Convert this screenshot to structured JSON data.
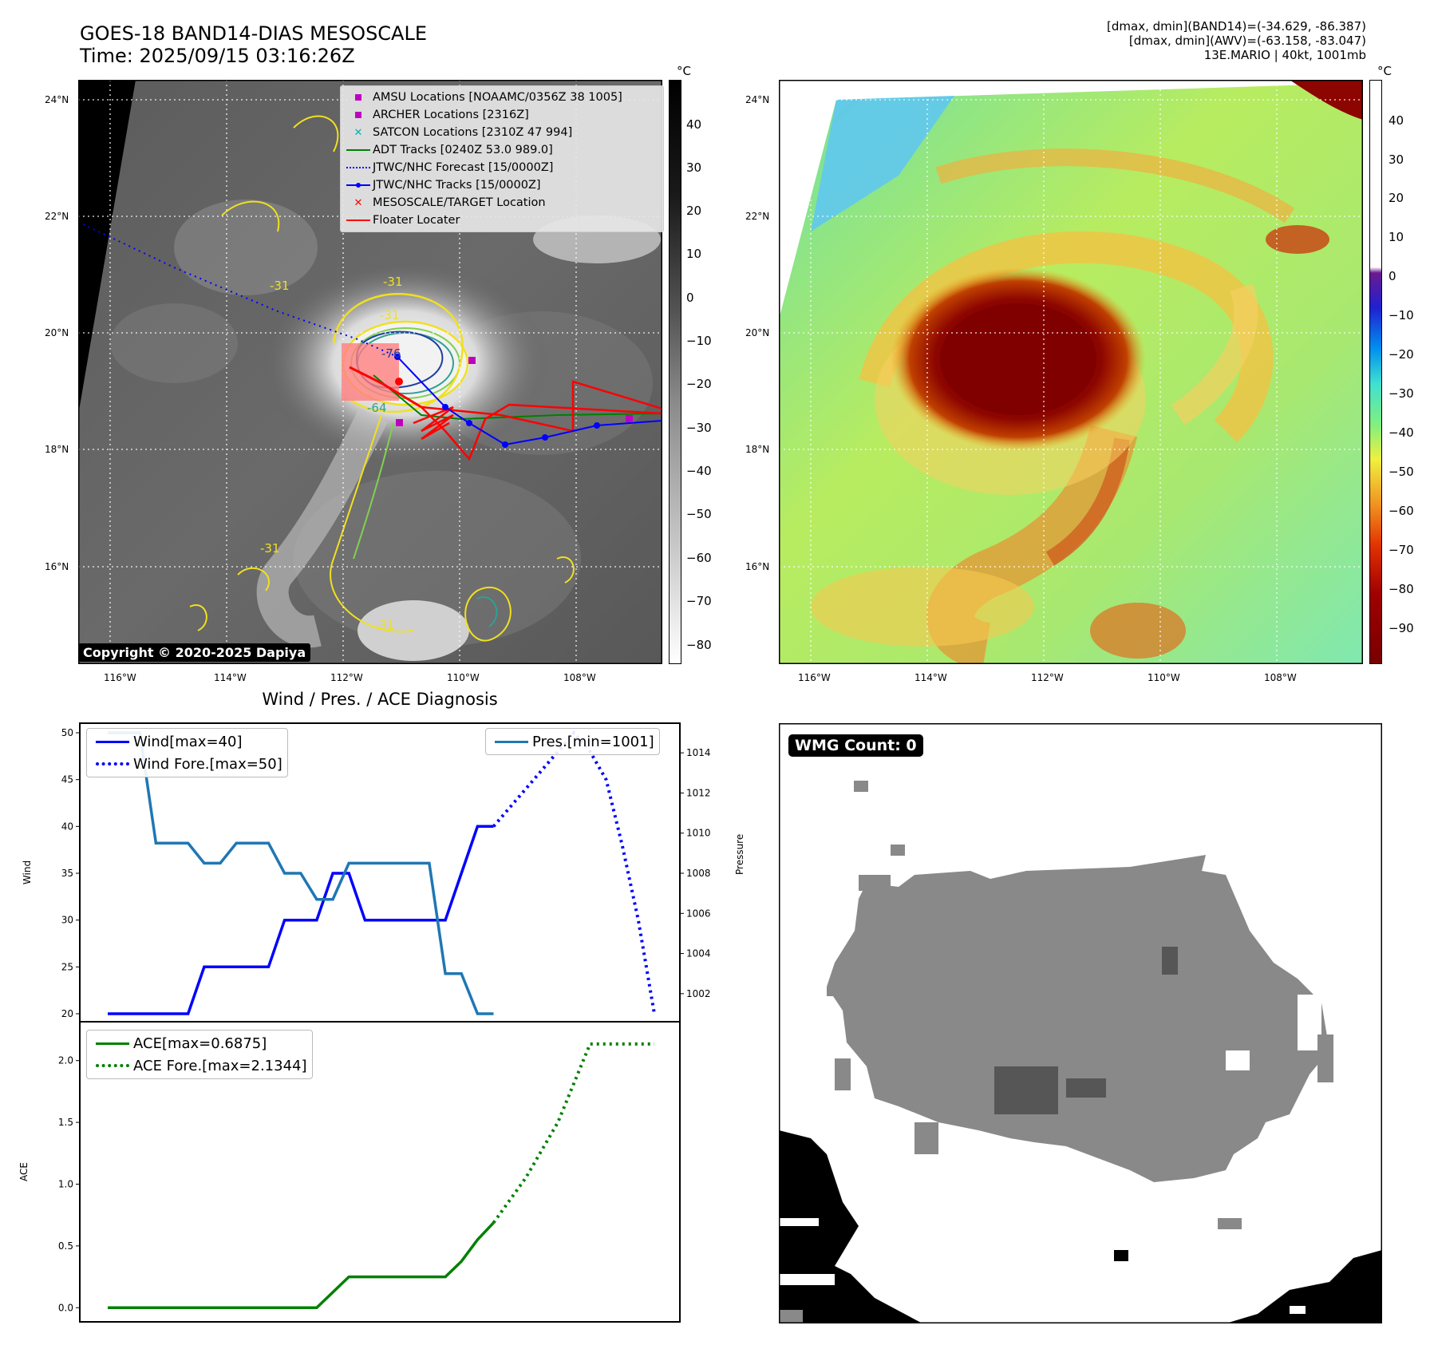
{
  "header": {
    "title_line1": "GOES-18 BAND14-DIAS MESOSCALE",
    "title_line2": "Time: 2025/09/15 03:16:26Z",
    "info_line1": "[dmax, dmin](BAND14)=(-34.629, -86.387)",
    "info_line2": "[dmax, dmin](AWV)=(-63.158, -83.047)",
    "info_line3": "13E.MARIO | 40kt, 1001mb"
  },
  "map_axes": {
    "lat_labels": [
      "24°N",
      "22°N",
      "20°N",
      "18°N",
      "16°N"
    ],
    "lon_labels": [
      "116°W",
      "114°W",
      "112°W",
      "110°W",
      "108°W"
    ]
  },
  "ir_panel": {
    "colorbar_unit": "°C",
    "colorbar_ticks": [
      "40",
      "30",
      "20",
      "10",
      "0",
      "−10",
      "−20",
      "−30",
      "−40",
      "−50",
      "−60",
      "−70",
      "−80"
    ],
    "legend": [
      {
        "label": "AMSU Locations [NOAAMC/0356Z 38 1005]",
        "marker": "square",
        "color": "#c000c0"
      },
      {
        "label": "ARCHER Locations [2316Z]",
        "marker": "square",
        "color": "#c000c0"
      },
      {
        "label": "SATCON Locations [2310Z 47 994]",
        "marker": "x",
        "color": "#00b0b0"
      },
      {
        "label": "ADT Tracks [0240Z 53.0 989.0]",
        "marker": "line",
        "color": "#008000"
      },
      {
        "label": "JTWC/NHC Forecast [15/0000Z]",
        "marker": "dotted",
        "color": "#0000ff"
      },
      {
        "label": "JTWC/NHC Tracks [15/0000Z]",
        "marker": "line-dot",
        "color": "#0000ff"
      },
      {
        "label": "MESOSCALE/TARGET Location",
        "marker": "x",
        "color": "#ff0000"
      },
      {
        "label": "Floater Locater",
        "marker": "line",
        "color": "#ff0000"
      }
    ],
    "contour_labels": [
      "-31",
      "-31",
      "-31",
      "-76",
      "-64",
      "-31",
      "-31"
    ],
    "copyright": "Copyright © 2020-2025 Dapiya"
  },
  "awv_panel": {
    "colorbar_unit": "°C",
    "colorbar_ticks": [
      "40",
      "30",
      "20",
      "10",
      "0",
      "−10",
      "−20",
      "−30",
      "−40",
      "−50",
      "−60",
      "−70",
      "−80",
      "−90"
    ]
  },
  "wmg_panel": {
    "badge": "WMG Count: 0"
  },
  "chart_data": [
    {
      "type": "line",
      "title": "Wind / Pres. / ACE Diagnosis",
      "ylabel": "Wind",
      "ylabel_right": "Pressure",
      "ylim": [
        20,
        50
      ],
      "ylim_right": [
        1001,
        1015
      ],
      "yticks": [
        "50",
        "45",
        "40",
        "35",
        "30",
        "25",
        "20"
      ],
      "yticks_right": [
        "1014",
        "1012",
        "1010",
        "1008",
        "1006",
        "1004",
        "1002"
      ],
      "xlim": [
        0,
        34
      ],
      "legend_left": [
        "Wind[max=40]",
        "Wind Fore.[max=50]"
      ],
      "legend_right": [
        "Pres.[min=1001]"
      ],
      "series": [
        {
          "name": "Wind[max=40]",
          "axis": "left",
          "style": "solid",
          "color": "#0000ff",
          "x": [
            0,
            5,
            6,
            10,
            11,
            12,
            13,
            14,
            15,
            16,
            17,
            18,
            19,
            20,
            21,
            22,
            23,
            24
          ],
          "y": [
            20,
            20,
            25,
            25,
            30,
            30,
            30,
            35,
            35,
            30,
            30,
            30,
            30,
            30,
            30,
            35,
            40,
            40
          ]
        },
        {
          "name": "Wind Fore.[max=50]",
          "axis": "left",
          "style": "dotted",
          "color": "#0000ff",
          "x": [
            24,
            26,
            28,
            29,
            30,
            31,
            32,
            33,
            34
          ],
          "y": [
            40,
            44,
            48,
            50,
            48,
            45,
            38,
            30,
            20
          ]
        },
        {
          "name": "Pres.[min=1001]",
          "axis": "right",
          "style": "solid",
          "color": "#1f77b4",
          "x": [
            0,
            1,
            2,
            3,
            4,
            5,
            6,
            7,
            8,
            9,
            10,
            11,
            12,
            13,
            14,
            15,
            16,
            17,
            18,
            19,
            20,
            21,
            22,
            23,
            24
          ],
          "y": [
            1015,
            1015,
            1015,
            1009.5,
            1009.5,
            1009.5,
            1008.5,
            1008.5,
            1009.5,
            1009.5,
            1009.5,
            1008,
            1008,
            1006.7,
            1006.7,
            1008.5,
            1008.5,
            1008.5,
            1008.5,
            1008.5,
            1008.5,
            1003,
            1003,
            1001,
            1001
          ]
        }
      ]
    },
    {
      "type": "line",
      "ylabel": "ACE",
      "ylim": [
        -0.05,
        2.25
      ],
      "yticks": [
        "2.0",
        "1.5",
        "1.0",
        "0.5",
        "0.0"
      ],
      "xlim": [
        0,
        34
      ],
      "legend": [
        "ACE[max=0.6875]",
        "ACE Fore.[max=2.1344]"
      ],
      "series": [
        {
          "name": "ACE[max=0.6875]",
          "style": "solid",
          "color": "#008000",
          "x": [
            0,
            13,
            14,
            15,
            16,
            17,
            18,
            19,
            20,
            21,
            22,
            23,
            24
          ],
          "y": [
            0,
            0,
            0.125,
            0.25,
            0.25,
            0.25,
            0.25,
            0.25,
            0.25,
            0.25,
            0.375,
            0.55,
            0.6875
          ]
        },
        {
          "name": "ACE Fore.[max=2.1344]",
          "style": "dotted",
          "color": "#008000",
          "x": [
            24,
            26,
            28,
            30,
            32,
            33,
            34
          ],
          "y": [
            0.6875,
            1.05,
            1.5,
            2.1344,
            2.1344,
            2.1344,
            2.1344
          ]
        }
      ]
    }
  ]
}
